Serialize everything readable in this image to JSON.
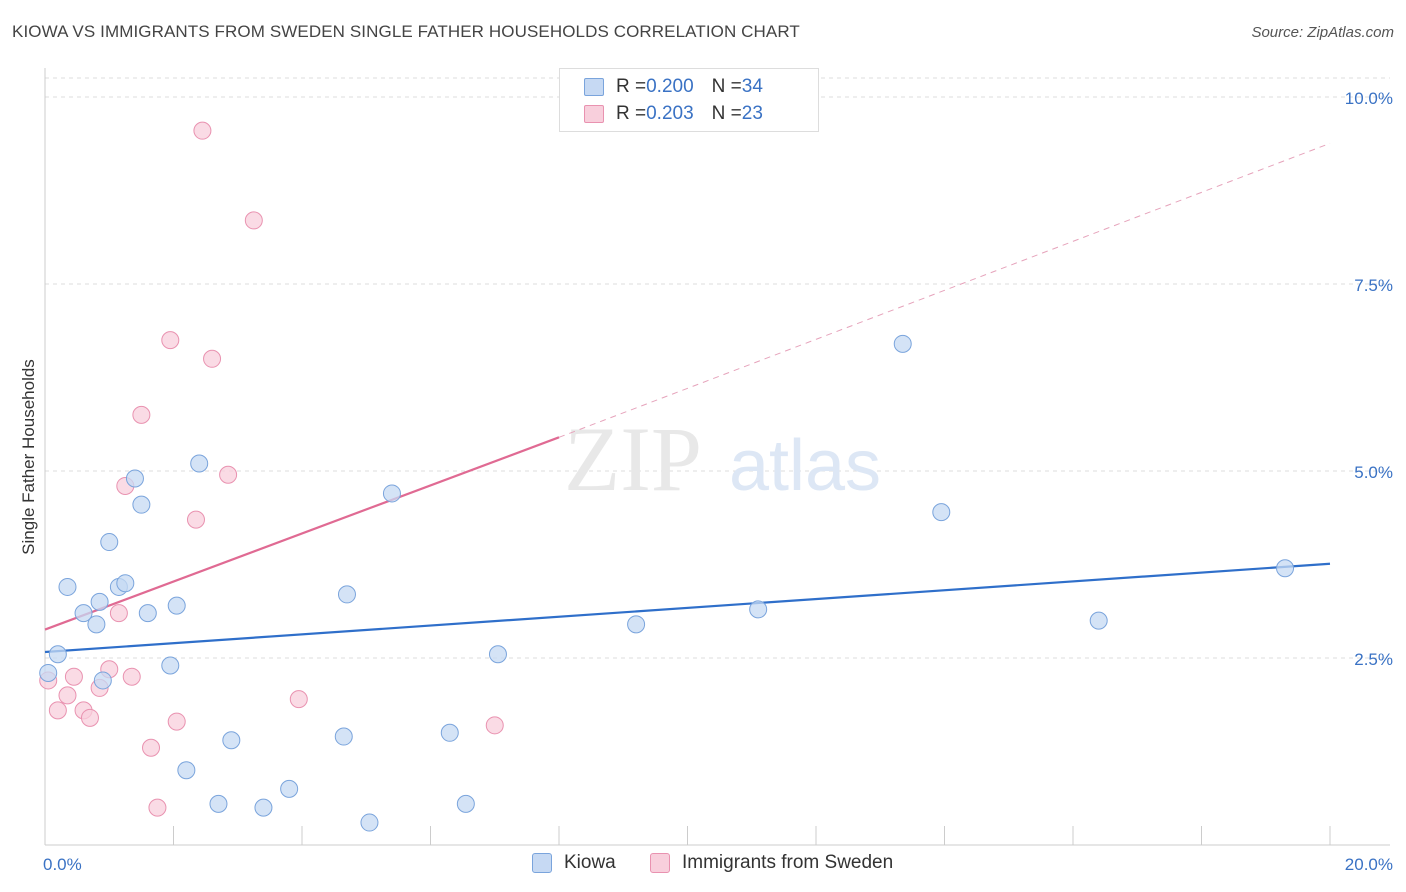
{
  "header": {
    "title": "KIOWA VS IMMIGRANTS FROM SWEDEN SINGLE FATHER HOUSEHOLDS CORRELATION CHART",
    "source": "Source: ZipAtlas.com"
  },
  "watermark": {
    "zip": "ZIP",
    "atlas": "atlas"
  },
  "legend": {
    "rows": [
      {
        "r_label": "R = ",
        "r_value": "0.200",
        "n_label": "N = ",
        "n_value": "34"
      },
      {
        "r_label": "R = ",
        "r_value": "0.203",
        "n_label": "N = ",
        "n_value": "23"
      }
    ]
  },
  "colors": {
    "kiowa_fill": "#c6d9f3",
    "kiowa_stroke": "#7aa4dc",
    "kiowa_line": "#2f6fca",
    "sweden_fill": "#f8cfdc",
    "sweden_stroke": "#e992b0",
    "sweden_line": "#e06a93",
    "axis_text": "#3a72c4",
    "grid": "#dddddd"
  },
  "chart_data": {
    "type": "scatter",
    "title": "KIOWA VS IMMIGRANTS FROM SWEDEN SINGLE FATHER HOUSEHOLDS CORRELATION CHART",
    "ylabel": "Single Father Households",
    "xlabel": "",
    "xlim": [
      0,
      20
    ],
    "ylim": [
      0,
      10.4
    ],
    "x_tick_labels": [
      "0.0%",
      "20.0%"
    ],
    "y_ticks": [
      2.5,
      5.0,
      7.5,
      10.0
    ],
    "y_tick_labels": [
      "2.5%",
      "5.0%",
      "7.5%",
      "10.0%"
    ],
    "grid": true,
    "legend_position": "top-center",
    "series": [
      {
        "name": "Kiowa",
        "points": [
          [
            0.05,
            2.3
          ],
          [
            0.2,
            2.55
          ],
          [
            0.35,
            3.45
          ],
          [
            0.6,
            3.1
          ],
          [
            0.8,
            2.95
          ],
          [
            0.85,
            3.25
          ],
          [
            0.9,
            2.2
          ],
          [
            1.0,
            4.05
          ],
          [
            1.15,
            3.45
          ],
          [
            1.25,
            3.5
          ],
          [
            1.4,
            4.9
          ],
          [
            1.5,
            4.55
          ],
          [
            1.6,
            3.1
          ],
          [
            1.95,
            2.4
          ],
          [
            2.05,
            3.2
          ],
          [
            2.2,
            1.0
          ],
          [
            2.4,
            5.1
          ],
          [
            2.7,
            0.55
          ],
          [
            2.9,
            1.4
          ],
          [
            3.4,
            0.5
          ],
          [
            3.8,
            0.75
          ],
          [
            4.65,
            1.45
          ],
          [
            4.7,
            3.35
          ],
          [
            5.05,
            0.3
          ],
          [
            5.4,
            4.7
          ],
          [
            6.3,
            1.5
          ],
          [
            6.55,
            0.55
          ],
          [
            7.05,
            2.55
          ],
          [
            9.2,
            2.95
          ],
          [
            11.1,
            3.15
          ],
          [
            13.35,
            6.7
          ],
          [
            13.95,
            4.45
          ],
          [
            16.4,
            3.0
          ],
          [
            19.3,
            3.7
          ]
        ],
        "trend": {
          "x0": 0,
          "y0": 2.58,
          "x1": 20,
          "y1": 3.76
        }
      },
      {
        "name": "Immigrants from Sweden",
        "points": [
          [
            0.05,
            2.2
          ],
          [
            0.2,
            1.8
          ],
          [
            0.35,
            2.0
          ],
          [
            0.45,
            2.25
          ],
          [
            0.6,
            1.8
          ],
          [
            0.7,
            1.7
          ],
          [
            0.85,
            2.1
          ],
          [
            1.0,
            2.35
          ],
          [
            1.15,
            3.1
          ],
          [
            1.25,
            4.8
          ],
          [
            1.35,
            2.25
          ],
          [
            1.5,
            5.75
          ],
          [
            1.65,
            1.3
          ],
          [
            1.75,
            0.5
          ],
          [
            1.95,
            6.75
          ],
          [
            2.05,
            1.65
          ],
          [
            2.35,
            4.35
          ],
          [
            2.45,
            9.55
          ],
          [
            2.6,
            6.5
          ],
          [
            2.85,
            4.95
          ],
          [
            3.25,
            8.35
          ],
          [
            3.95,
            1.95
          ],
          [
            7.0,
            1.6
          ]
        ],
        "trend": {
          "x0": 0,
          "y0": 2.88,
          "x1": 8,
          "y1": 5.45
        },
        "trend_dashed": {
          "x0": 8,
          "y0": 5.45,
          "x1": 20,
          "y1": 9.38
        }
      }
    ]
  },
  "bottom_legend": {
    "items": [
      {
        "label": "Kiowa"
      },
      {
        "label": "Immigrants from Sweden"
      }
    ]
  }
}
